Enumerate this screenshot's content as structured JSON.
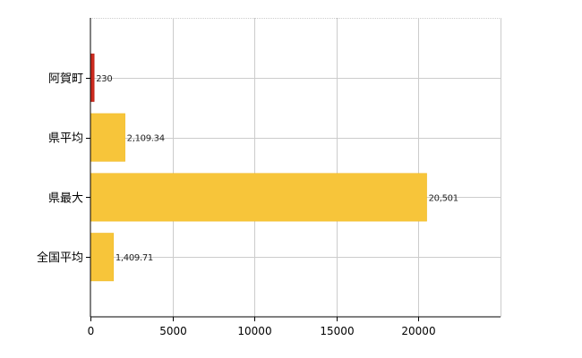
{
  "chart_data": {
    "type": "bar",
    "orientation": "horizontal",
    "categories": [
      "阿賀町",
      "県平均",
      "県最大",
      "全国平均"
    ],
    "values": [
      230,
      2109.34,
      20501,
      1409.71
    ],
    "value_labels": [
      "230",
      "2,109.34",
      "20,501",
      "1,409.71"
    ],
    "colors": [
      "#cc2a1e",
      "#f7c53a",
      "#f7c53a",
      "#f7c53a"
    ],
    "xlim": [
      0,
      25000
    ],
    "xticks": [
      0,
      5000,
      10000,
      15000,
      20000
    ],
    "xtick_labels": [
      "0",
      "5000",
      "10000",
      "15000",
      "20000"
    ],
    "grid": true,
    "gridline_color": "#cccccc",
    "title": "",
    "xlabel": "",
    "ylabel": ""
  }
}
